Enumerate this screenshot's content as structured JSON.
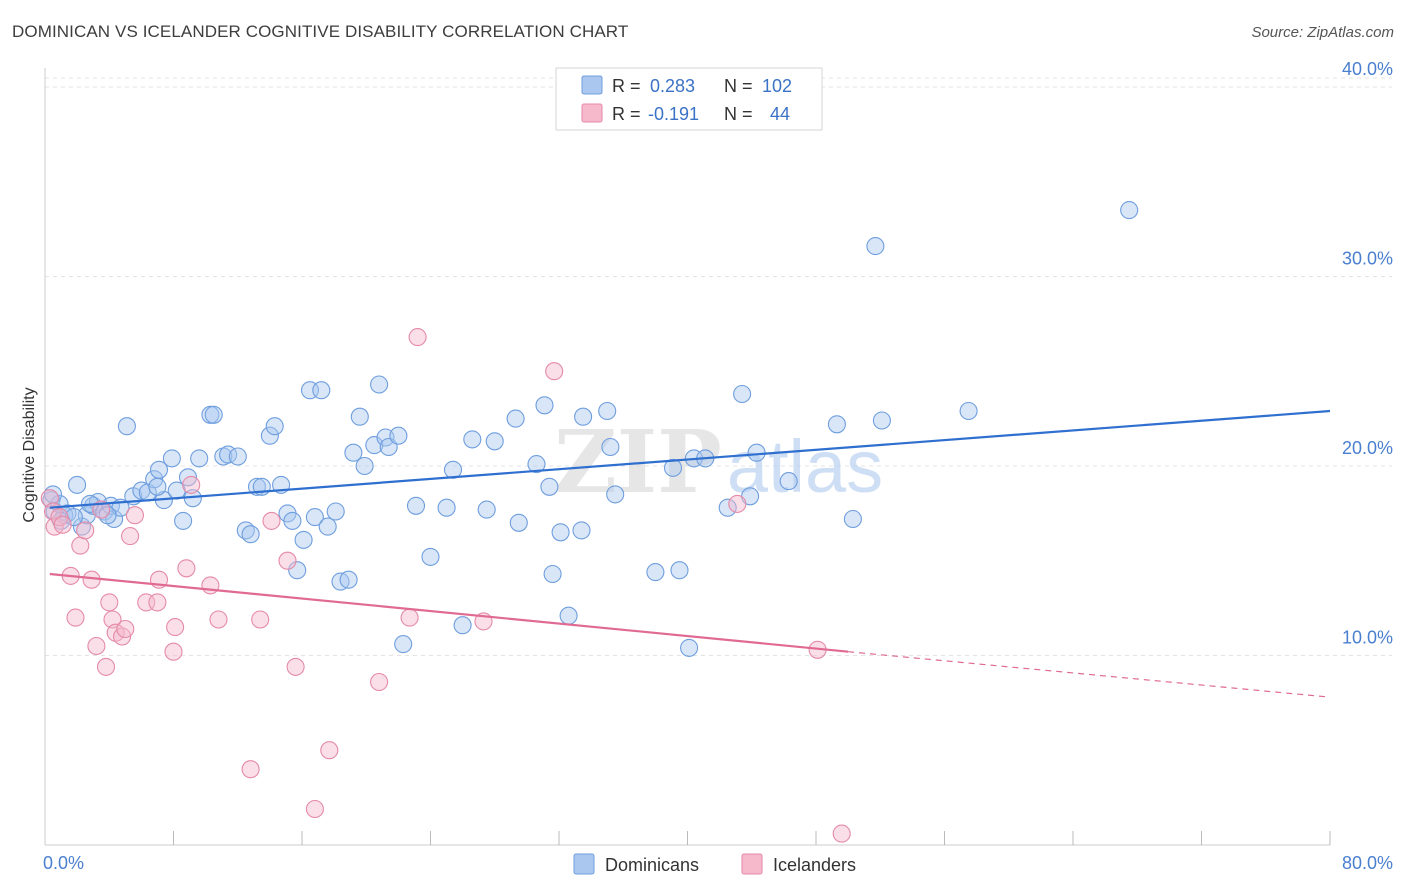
{
  "title": "DOMINICAN VS ICELANDER COGNITIVE DISABILITY CORRELATION CHART",
  "source": "Source: ZipAtlas.com",
  "watermark": {
    "left": "ZIP",
    "right": "atlas"
  },
  "colors": {
    "dominicans_fill": "#a9c7ef",
    "dominicans_stroke": "#6f9ede",
    "dominicans_line": "#2f6fd0",
    "icelanders_fill": "#f5b9cb",
    "icelanders_stroke": "#e58aa7",
    "icelanders_line": "#e06a93",
    "axis_text": "#4a7fcf",
    "grid": "#e3e3e3"
  },
  "legend": {
    "rows": [
      {
        "r_label": "R =",
        "r_value": "0.283",
        "n_label": "N =",
        "n_value": "102"
      },
      {
        "r_label": "R =",
        "r_value": "-0.191",
        "n_label": "N =",
        "n_value": "44"
      }
    ]
  },
  "bottom_legend": {
    "dominicans": "Dominicans",
    "icelanders": "Icelanders"
  },
  "chart_data": {
    "type": "scatter",
    "xlabel": "",
    "ylabel": "Cognitive Disability",
    "xlim": [
      0,
      80
    ],
    "ylim": [
      0,
      41
    ],
    "x_tick_labels": [
      "0.0%",
      "80.0%"
    ],
    "y_ticks": [
      10,
      20,
      30,
      40
    ],
    "y_tick_labels": [
      "10.0%",
      "20.0%",
      "30.0%",
      "40.0%"
    ],
    "x_minor_ticks": [
      8,
      16,
      24,
      32,
      40,
      48,
      56,
      64,
      72,
      80
    ],
    "grid": true,
    "legend_position": "top-center",
    "series": [
      {
        "name": "Dominicans",
        "r": 0.283,
        "n": 102,
        "trend": {
          "x": [
            0.3,
            80
          ],
          "y": [
            17.8,
            22.9
          ]
        },
        "points": [
          [
            0.4,
            18.2
          ],
          [
            0.6,
            17.6
          ],
          [
            0.9,
            18.0
          ],
          [
            1.2,
            17.4
          ],
          [
            1.4,
            17.5
          ],
          [
            2.0,
            19.0
          ],
          [
            2.3,
            16.8
          ],
          [
            2.6,
            17.4
          ],
          [
            3.0,
            17.9
          ],
          [
            3.3,
            18.1
          ],
          [
            3.7,
            17.6
          ],
          [
            4.1,
            17.9
          ],
          [
            4.3,
            17.2
          ],
          [
            4.7,
            17.8
          ],
          [
            5.1,
            22.1
          ],
          [
            5.5,
            18.4
          ],
          [
            6.0,
            18.7
          ],
          [
            6.4,
            18.6
          ],
          [
            6.8,
            19.3
          ],
          [
            7.1,
            19.8
          ],
          [
            7.4,
            18.2
          ],
          [
            7.9,
            20.4
          ],
          [
            8.2,
            18.7
          ],
          [
            8.6,
            17.1
          ],
          [
            8.9,
            19.4
          ],
          [
            9.2,
            18.3
          ],
          [
            9.6,
            20.4
          ],
          [
            10.3,
            22.7
          ],
          [
            10.5,
            22.7
          ],
          [
            11.1,
            20.5
          ],
          [
            11.4,
            20.6
          ],
          [
            12.5,
            16.6
          ],
          [
            12.8,
            16.4
          ],
          [
            13.2,
            18.9
          ],
          [
            13.5,
            18.9
          ],
          [
            14.0,
            21.6
          ],
          [
            14.3,
            22.1
          ],
          [
            14.7,
            19.0
          ],
          [
            15.1,
            17.5
          ],
          [
            15.4,
            17.1
          ],
          [
            15.7,
            14.5
          ],
          [
            16.1,
            16.1
          ],
          [
            16.5,
            24.0
          ],
          [
            16.8,
            17.3
          ],
          [
            17.2,
            24.0
          ],
          [
            17.6,
            16.8
          ],
          [
            18.1,
            17.6
          ],
          [
            18.4,
            13.9
          ],
          [
            18.9,
            14.0
          ],
          [
            19.2,
            20.7
          ],
          [
            19.6,
            22.6
          ],
          [
            19.9,
            20.0
          ],
          [
            20.5,
            21.1
          ],
          [
            20.8,
            24.3
          ],
          [
            21.2,
            21.5
          ],
          [
            21.4,
            21.0
          ],
          [
            22.0,
            21.6
          ],
          [
            22.3,
            10.6
          ],
          [
            23.1,
            17.9
          ],
          [
            24.0,
            15.2
          ],
          [
            25.0,
            17.8
          ],
          [
            25.4,
            19.8
          ],
          [
            26.6,
            21.4
          ],
          [
            27.5,
            17.7
          ],
          [
            28.0,
            21.3
          ],
          [
            29.3,
            22.5
          ],
          [
            29.5,
            17.0
          ],
          [
            30.6,
            20.1
          ],
          [
            31.1,
            23.2
          ],
          [
            31.4,
            18.9
          ],
          [
            31.6,
            14.3
          ],
          [
            32.1,
            16.5
          ],
          [
            32.6,
            12.1
          ],
          [
            33.4,
            16.6
          ],
          [
            33.5,
            22.6
          ],
          [
            35.0,
            22.9
          ],
          [
            35.2,
            21.0
          ],
          [
            35.5,
            18.5
          ],
          [
            38.0,
            14.4
          ],
          [
            39.1,
            19.9
          ],
          [
            39.5,
            14.5
          ],
          [
            40.1,
            10.4
          ],
          [
            40.4,
            20.4
          ],
          [
            41.1,
            20.4
          ],
          [
            42.5,
            17.8
          ],
          [
            43.4,
            23.8
          ],
          [
            43.9,
            18.4
          ],
          [
            44.3,
            20.7
          ],
          [
            46.3,
            19.2
          ],
          [
            49.3,
            22.2
          ],
          [
            50.3,
            17.2
          ],
          [
            51.7,
            31.6
          ],
          [
            52.1,
            22.4
          ],
          [
            57.5,
            22.9
          ],
          [
            67.5,
            33.5
          ],
          [
            0.5,
            18.5
          ],
          [
            1.0,
            17.1
          ],
          [
            1.8,
            17.3
          ],
          [
            2.8,
            18.0
          ],
          [
            3.9,
            17.4
          ],
          [
            7.0,
            18.9
          ],
          [
            12.0,
            20.5
          ],
          [
            26.0,
            11.6
          ]
        ]
      },
      {
        "name": "Icelanders",
        "r": -0.191,
        "n": 44,
        "trend": {
          "x": [
            0.3,
            50
          ],
          "y": [
            14.3,
            10.2
          ]
        },
        "trend_extension": {
          "x": [
            50,
            80
          ],
          "y": [
            10.2,
            7.8
          ]
        },
        "points": [
          [
            0.3,
            18.3
          ],
          [
            0.5,
            17.6
          ],
          [
            0.6,
            16.8
          ],
          [
            0.9,
            17.3
          ],
          [
            1.1,
            16.9
          ],
          [
            1.6,
            14.2
          ],
          [
            1.9,
            12.0
          ],
          [
            2.2,
            15.8
          ],
          [
            2.5,
            16.6
          ],
          [
            2.9,
            14.0
          ],
          [
            3.2,
            10.5
          ],
          [
            3.5,
            17.7
          ],
          [
            3.8,
            9.4
          ],
          [
            4.0,
            12.8
          ],
          [
            4.2,
            11.9
          ],
          [
            4.4,
            11.2
          ],
          [
            4.8,
            11.0
          ],
          [
            5.0,
            11.4
          ],
          [
            5.3,
            16.3
          ],
          [
            5.6,
            17.4
          ],
          [
            6.3,
            12.8
          ],
          [
            7.0,
            12.8
          ],
          [
            7.1,
            14.0
          ],
          [
            8.0,
            10.2
          ],
          [
            8.1,
            11.5
          ],
          [
            8.8,
            14.6
          ],
          [
            9.1,
            19.0
          ],
          [
            10.3,
            13.7
          ],
          [
            10.8,
            11.9
          ],
          [
            12.8,
            4.0
          ],
          [
            13.4,
            11.9
          ],
          [
            14.1,
            17.1
          ],
          [
            15.1,
            15.0
          ],
          [
            15.6,
            9.4
          ],
          [
            16.8,
            1.9
          ],
          [
            17.7,
            5.0
          ],
          [
            20.8,
            8.6
          ],
          [
            22.7,
            12.0
          ],
          [
            23.2,
            26.8
          ],
          [
            27.3,
            11.8
          ],
          [
            31.7,
            25.0
          ],
          [
            43.1,
            18.0
          ],
          [
            48.1,
            10.3
          ],
          [
            49.6,
            0.6
          ]
        ]
      }
    ]
  }
}
